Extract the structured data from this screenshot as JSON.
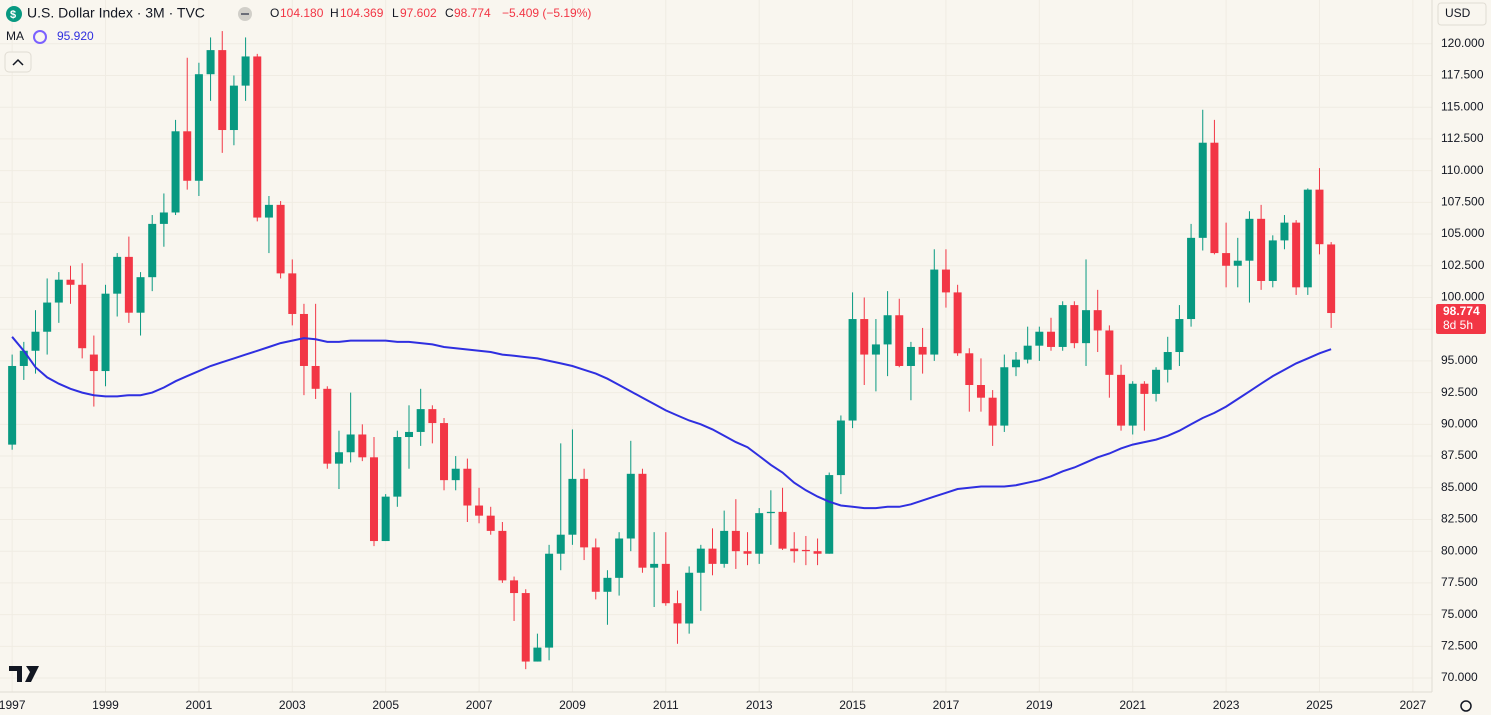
{
  "chart_data": {
    "type": "candlestick",
    "title": "U.S. Dollar Index · 3M · TVC",
    "ohlc_legend": {
      "keys": [
        "O",
        "H",
        "L",
        "C"
      ],
      "labels": [
        "104.180",
        "104.369",
        "97.602",
        "98.774"
      ]
    },
    "change_label": "−5.409 (−5.19%)",
    "currency": "USD",
    "last_price_label": "98.774",
    "countdown": "8d 5h",
    "up_color": "#089981",
    "down_color": "#f23645",
    "x": [
      1997,
      1997.25,
      1997.5,
      1997.75,
      1998,
      1998.25,
      1998.5,
      1998.75,
      1999,
      1999.25,
      1999.5,
      1999.75,
      2000,
      2000.25,
      2000.5,
      2000.75,
      2001,
      2001.25,
      2001.5,
      2001.75,
      2002,
      2002.25,
      2002.5,
      2002.75,
      2003,
      2003.25,
      2003.5,
      2003.75,
      2004,
      2004.25,
      2004.5,
      2004.75,
      2005,
      2005.25,
      2005.5,
      2005.75,
      2006,
      2006.25,
      2006.5,
      2006.75,
      2007,
      2007.25,
      2007.5,
      2007.75,
      2008,
      2008.25,
      2008.5,
      2008.75,
      2009,
      2009.25,
      2009.5,
      2009.75,
      2010,
      2010.25,
      2010.5,
      2010.75,
      2011,
      2011.25,
      2011.5,
      2011.75,
      2012,
      2012.25,
      2012.5,
      2012.75,
      2013,
      2013.25,
      2013.5,
      2013.75,
      2014,
      2014.25,
      2014.5,
      2014.75,
      2015,
      2015.25,
      2015.5,
      2015.75,
      2016,
      2016.25,
      2016.5,
      2016.75,
      2017,
      2017.25,
      2017.5,
      2017.75,
      2018,
      2018.25,
      2018.5,
      2018.75,
      2019,
      2019.25,
      2019.5,
      2019.75,
      2020,
      2020.25,
      2020.5,
      2020.75,
      2021,
      2021.25,
      2021.5,
      2021.75,
      2022,
      2022.25,
      2022.5,
      2022.75,
      2023,
      2023.25,
      2023.5,
      2023.75,
      2024,
      2024.25,
      2024.5,
      2024.75,
      2025,
      2025.25
    ],
    "open": [
      88.4,
      94.6,
      95.8,
      97.3,
      99.6,
      101.4,
      101.0,
      95.5,
      94.2,
      100.3,
      103.2,
      98.8,
      101.6,
      105.8,
      106.7,
      113.1,
      109.2,
      117.6,
      119.5,
      113.2,
      116.7,
      119.0,
      106.3,
      107.3,
      101.9,
      98.7,
      94.6,
      92.8,
      86.9,
      87.8,
      89.2,
      87.4,
      80.8,
      84.3,
      89.0,
      89.4,
      91.2,
      90.1,
      85.6,
      86.5,
      83.6,
      82.8,
      81.6,
      77.7,
      76.7,
      71.3,
      72.4,
      79.8,
      81.3,
      85.7,
      80.3,
      76.8,
      77.9,
      81.0,
      86.1,
      78.7,
      79.0,
      75.9,
      74.3,
      78.3,
      80.2,
      79.0,
      81.6,
      80.0,
      79.8,
      83.0,
      83.1,
      80.2,
      80.1,
      80.0,
      79.8,
      86.0,
      90.3,
      98.3,
      95.5,
      96.3,
      98.6,
      94.6,
      96.1,
      95.5,
      102.2,
      100.4,
      95.6,
      93.1,
      92.1,
      89.9,
      94.5,
      95.1,
      96.2,
      97.3,
      96.1,
      99.4,
      96.4,
      99.0,
      97.4,
      93.9,
      89.9,
      93.2,
      92.4,
      94.3,
      95.7,
      98.3,
      104.7,
      112.2,
      103.5,
      102.5,
      102.9,
      106.2,
      101.3,
      104.5,
      105.9,
      100.8,
      108.5,
      104.18
    ],
    "high": [
      95.5,
      96.5,
      99.0,
      101.5,
      102.0,
      102.5,
      102.7,
      97.0,
      101.0,
      103.5,
      104.8,
      102.0,
      106.5,
      108.2,
      114.0,
      118.9,
      118.5,
      120.5,
      121.0,
      117.5,
      120.5,
      119.2,
      108.0,
      107.6,
      103.0,
      99.5,
      99.5,
      93.0,
      89.5,
      92.5,
      90.0,
      89.0,
      84.5,
      89.5,
      91.5,
      92.8,
      91.5,
      90.5,
      87.5,
      87.3,
      85.0,
      83.5,
      82.3,
      78.0,
      77.0,
      73.5,
      80.5,
      88.5,
      89.6,
      86.5,
      81.0,
      78.5,
      81.5,
      88.7,
      86.5,
      81.5,
      81.5,
      76.9,
      78.8,
      80.5,
      81.8,
      83.2,
      84.1,
      81.5,
      83.4,
      84.8,
      85.0,
      81.5,
      81.2,
      81.0,
      86.2,
      90.7,
      100.4,
      100.0,
      98.3,
      100.5,
      99.9,
      96.5,
      97.6,
      103.8,
      103.8,
      101.0,
      96.0,
      95.2,
      92.7,
      95.5,
      95.7,
      97.7,
      97.7,
      98.4,
      99.7,
      99.7,
      103.0,
      100.6,
      97.8,
      94.7,
      93.4,
      93.4,
      94.5,
      96.9,
      99.4,
      105.8,
      114.8,
      114.0,
      105.9,
      104.7,
      106.8,
      107.3,
      104.9,
      106.5,
      106.1,
      108.6,
      110.2,
      104.369
    ],
    "low": [
      88.0,
      93.5,
      94.0,
      95.5,
      98.0,
      99.5,
      95.2,
      91.4,
      93.0,
      98.5,
      98.0,
      97.0,
      100.5,
      104.0,
      106.5,
      108.5,
      108.0,
      115.5,
      111.4,
      112.0,
      115.5,
      106.0,
      103.5,
      101.5,
      97.8,
      92.3,
      92.0,
      86.5,
      84.9,
      87.0,
      87.1,
      80.4,
      80.8,
      83.5,
      86.5,
      88.3,
      88.5,
      84.8,
      84.8,
      82.3,
      82.2,
      81.3,
      77.5,
      74.5,
      70.7,
      71.3,
      71.4,
      78.5,
      80.5,
      79.3,
      76.2,
      74.2,
      76.5,
      80.0,
      78.3,
      75.6,
      75.7,
      72.7,
      73.5,
      75.3,
      78.1,
      78.7,
      78.6,
      78.9,
      79.0,
      80.5,
      80.1,
      79.1,
      78.9,
      78.9,
      79.8,
      84.5,
      89.7,
      93.1,
      92.6,
      93.8,
      94.5,
      91.9,
      94.0,
      95.0,
      99.2,
      95.4,
      91.0,
      91.0,
      88.3,
      89.4,
      93.8,
      94.8,
      95.0,
      95.8,
      95.8,
      96.0,
      94.6,
      95.7,
      92.1,
      89.5,
      89.2,
      89.5,
      91.8,
      93.3,
      94.6,
      97.7,
      103.7,
      103.4,
      100.8,
      100.8,
      99.6,
      100.6,
      100.8,
      103.8,
      100.2,
      100.2,
      103.4,
      97.602
    ],
    "close": [
      94.6,
      95.8,
      97.3,
      99.6,
      101.4,
      101.0,
      96.0,
      94.2,
      100.3,
      103.2,
      98.8,
      101.6,
      105.8,
      106.7,
      113.1,
      109.2,
      117.6,
      119.5,
      113.2,
      116.7,
      119.0,
      106.3,
      107.3,
      101.9,
      98.7,
      94.6,
      92.8,
      86.9,
      87.8,
      89.2,
      87.4,
      80.8,
      84.3,
      89.0,
      89.4,
      91.2,
      90.1,
      85.6,
      86.5,
      83.6,
      82.8,
      81.6,
      77.7,
      76.7,
      71.3,
      72.4,
      79.8,
      81.3,
      85.7,
      80.3,
      76.8,
      77.9,
      81.0,
      86.1,
      78.7,
      79.0,
      75.9,
      74.3,
      78.3,
      80.2,
      79.0,
      81.6,
      80.0,
      79.8,
      83.0,
      83.1,
      80.2,
      80.0,
      80.0,
      79.8,
      86.0,
      90.3,
      98.3,
      95.5,
      96.3,
      98.6,
      94.6,
      96.1,
      95.5,
      102.2,
      100.4,
      95.6,
      93.1,
      92.1,
      89.9,
      94.5,
      95.1,
      96.2,
      97.3,
      96.1,
      99.4,
      96.4,
      99.0,
      97.4,
      93.9,
      89.9,
      93.2,
      92.4,
      94.3,
      95.7,
      98.3,
      104.7,
      112.2,
      103.5,
      102.5,
      102.9,
      106.2,
      101.3,
      104.5,
      105.9,
      100.8,
      108.5,
      104.2,
      98.774
    ],
    "ma": {
      "name": "MA",
      "color": "#2f2fe0",
      "value_label": "95.920",
      "values": [
        96.9,
        95.8,
        94.5,
        93.7,
        93.2,
        92.8,
        92.5,
        92.3,
        92.2,
        92.2,
        92.3,
        92.3,
        92.5,
        92.9,
        93.4,
        93.8,
        94.2,
        94.6,
        94.9,
        95.2,
        95.5,
        95.8,
        96.1,
        96.4,
        96.6,
        96.8,
        96.7,
        96.5,
        96.5,
        96.6,
        96.6,
        96.6,
        96.6,
        96.5,
        96.5,
        96.4,
        96.3,
        96.1,
        96.0,
        95.9,
        95.8,
        95.7,
        95.5,
        95.4,
        95.3,
        95.2,
        95.0,
        94.8,
        94.6,
        94.3,
        94.0,
        93.6,
        93.1,
        92.6,
        92.1,
        91.6,
        91.1,
        90.7,
        90.3,
        90.0,
        89.6,
        89.1,
        88.6,
        88.2,
        87.5,
        86.8,
        86.2,
        85.4,
        84.8,
        84.3,
        83.9,
        83.6,
        83.5,
        83.4,
        83.4,
        83.5,
        83.5,
        83.7,
        84.0,
        84.3,
        84.6,
        84.9,
        85.0,
        85.1,
        85.1,
        85.1,
        85.2,
        85.4,
        85.6,
        85.9,
        86.3,
        86.6,
        87.0,
        87.4,
        87.7,
        88.1,
        88.4,
        88.6,
        88.8,
        89.1,
        89.5,
        90.0,
        90.5,
        90.9,
        91.4,
        92.0,
        92.6,
        93.2,
        93.8,
        94.3,
        94.8,
        95.2,
        95.6,
        95.92
      ]
    },
    "xlim": [
      1996.74,
      2027.41
    ],
    "xticks": [
      1997,
      1999,
      2001,
      2003,
      2005,
      2007,
      2009,
      2011,
      2013,
      2015,
      2017,
      2019,
      2021,
      2023,
      2025,
      2027
    ],
    "ylim": [
      68.9,
      123.45
    ],
    "yticks": [
      {
        "value": 70,
        "label": "70.000"
      },
      {
        "value": 72.5,
        "label": "72.500"
      },
      {
        "value": 75,
        "label": "75.000"
      },
      {
        "value": 77.5,
        "label": "77.500"
      },
      {
        "value": 80,
        "label": "80.000"
      },
      {
        "value": 82.5,
        "label": "82.500"
      },
      {
        "value": 85,
        "label": "85.000"
      },
      {
        "value": 87.5,
        "label": "87.500"
      },
      {
        "value": 90,
        "label": "90.000"
      },
      {
        "value": 92.5,
        "label": "92.500"
      },
      {
        "value": 95,
        "label": "95.000"
      },
      {
        "value": 97.5,
        "label": "97.500"
      },
      {
        "value": 100,
        "label": "100.000"
      },
      {
        "value": 102.5,
        "label": "102.500"
      },
      {
        "value": 105,
        "label": "105.000"
      },
      {
        "value": 107.5,
        "label": "107.500"
      },
      {
        "value": 110,
        "label": "110.000"
      },
      {
        "value": 112.5,
        "label": "112.500"
      },
      {
        "value": 115,
        "label": "115.000"
      },
      {
        "value": 117.5,
        "label": "117.500"
      },
      {
        "value": 120,
        "label": "120.000"
      }
    ],
    "grid": true
  }
}
